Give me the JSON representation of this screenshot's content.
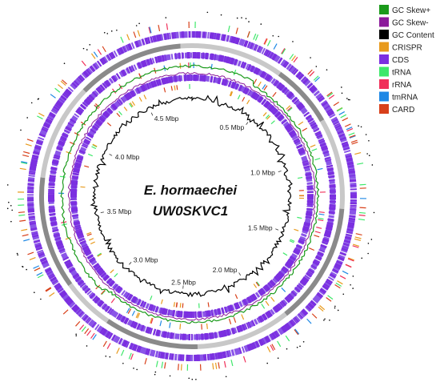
{
  "title": {
    "line1": "E. hormaechei",
    "line2": "UW0SKVC1"
  },
  "legend": [
    {
      "label": "GC Skew+",
      "color": "#1a9a1a",
      "icon": "gc-skew-plus"
    },
    {
      "label": "GC Skew-",
      "color": "#8b1a9b",
      "icon": "gc-skew-minus"
    },
    {
      "label": "GC Content",
      "color": "#000000",
      "icon": "gc-content"
    },
    {
      "label": "CRISPR",
      "color": "#e89a1c",
      "icon": "crispr"
    },
    {
      "label": "CDS",
      "color": "#7b2fe0",
      "icon": "cds"
    },
    {
      "label": "tRNA",
      "color": "#3ee86a",
      "icon": "trna"
    },
    {
      "label": "rRNA",
      "color": "#f0305a",
      "icon": "rrna"
    },
    {
      "label": "tmRNA",
      "color": "#1e88e5",
      "icon": "tmrna"
    },
    {
      "label": "CARD",
      "color": "#d8401a",
      "icon": "card"
    }
  ],
  "ticks": [
    {
      "label": "0.5 Mbp",
      "mbp": 0.5
    },
    {
      "label": "1.0 Mbp",
      "mbp": 1.0
    },
    {
      "label": "1.5 Mbp",
      "mbp": 1.5
    },
    {
      "label": "2.0 Mbp",
      "mbp": 2.0
    },
    {
      "label": "2.5 Mbp",
      "mbp": 2.5
    },
    {
      "label": "3.0 Mbp",
      "mbp": 3.0
    },
    {
      "label": "3.5 Mbp",
      "mbp": 3.5
    },
    {
      "label": "4.0 Mbp",
      "mbp": 4.0
    },
    {
      "label": "4.5 Mbp",
      "mbp": 4.5
    }
  ],
  "genome_length_mbp": 4.85,
  "colors": {
    "backbone_dark": "#8a8a8a",
    "backbone_light": "#c8c8c8"
  }
}
